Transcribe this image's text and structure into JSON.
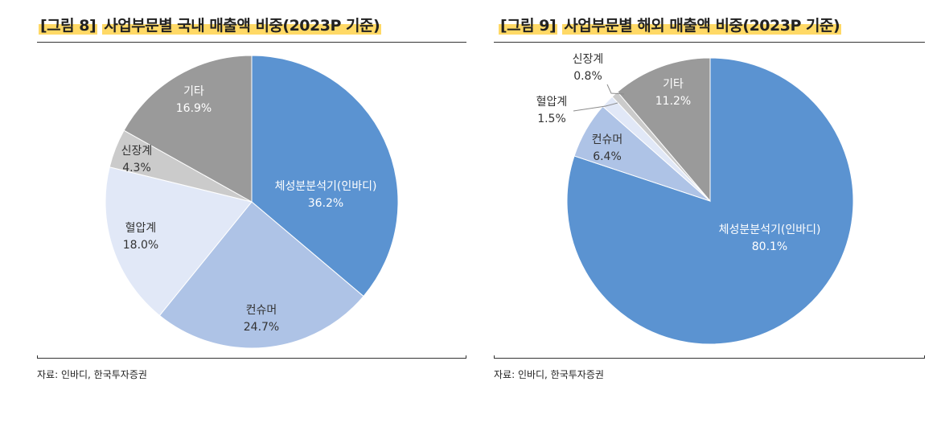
{
  "figures": [
    {
      "title_bracket": "[그림 8]",
      "title_text": "사업부문별 국내 매출액 비중(2023P 기준)",
      "source": "자료: 인바디, 한국투자증권"
    },
    {
      "title_bracket": "[그림 9]",
      "title_text": "사업부문별 해외 매출액 비중(2023P 기준)",
      "source": "자료: 인바디, 한국투자증권"
    }
  ],
  "chart_data": [
    {
      "type": "pie",
      "title": "사업부문별 국내 매출액 비중(2023P 기준)",
      "start": "12 o'clock, clockwise",
      "slices": [
        {
          "label": "체성분분석기(인바디)",
          "value": 36.2,
          "display": "36.2%",
          "color": "#5b93d1",
          "text_color": "#ffffff"
        },
        {
          "label": "컨슈머",
          "value": 24.7,
          "display": "24.7%",
          "color": "#aec3e6",
          "text_color": "#333333"
        },
        {
          "label": "혈압계",
          "value": 18.0,
          "display": "18.0%",
          "color": "#e1e8f7",
          "text_color": "#333333"
        },
        {
          "label": "신장계",
          "value": 4.3,
          "display": "4.3%",
          "color": "#cbcbcb",
          "text_color": "#333333"
        },
        {
          "label": "기타",
          "value": 16.9,
          "display": "16.9%",
          "color": "#9a9a9a",
          "text_color": "#ffffff"
        }
      ]
    },
    {
      "type": "pie",
      "title": "사업부문별 해외 매출액 비중(2023P 기준)",
      "start": "12 o'clock, clockwise",
      "slices": [
        {
          "label": "체성분분석기(인바디)",
          "value": 80.1,
          "display": "80.1%",
          "color": "#5b93d1",
          "text_color": "#ffffff"
        },
        {
          "label": "컨슈머",
          "value": 6.4,
          "display": "6.4%",
          "color": "#aec3e6",
          "text_color": "#333333"
        },
        {
          "label": "혈압계",
          "value": 1.5,
          "display": "1.5%",
          "color": "#e1e8f7",
          "text_color": "#333333"
        },
        {
          "label": "신장계",
          "value": 0.8,
          "display": "0.8%",
          "color": "#cbcbcb",
          "text_color": "#333333"
        },
        {
          "label": "기타",
          "value": 11.2,
          "display": "11.2%",
          "color": "#9a9a9a",
          "text_color": "#ffffff"
        }
      ]
    }
  ]
}
